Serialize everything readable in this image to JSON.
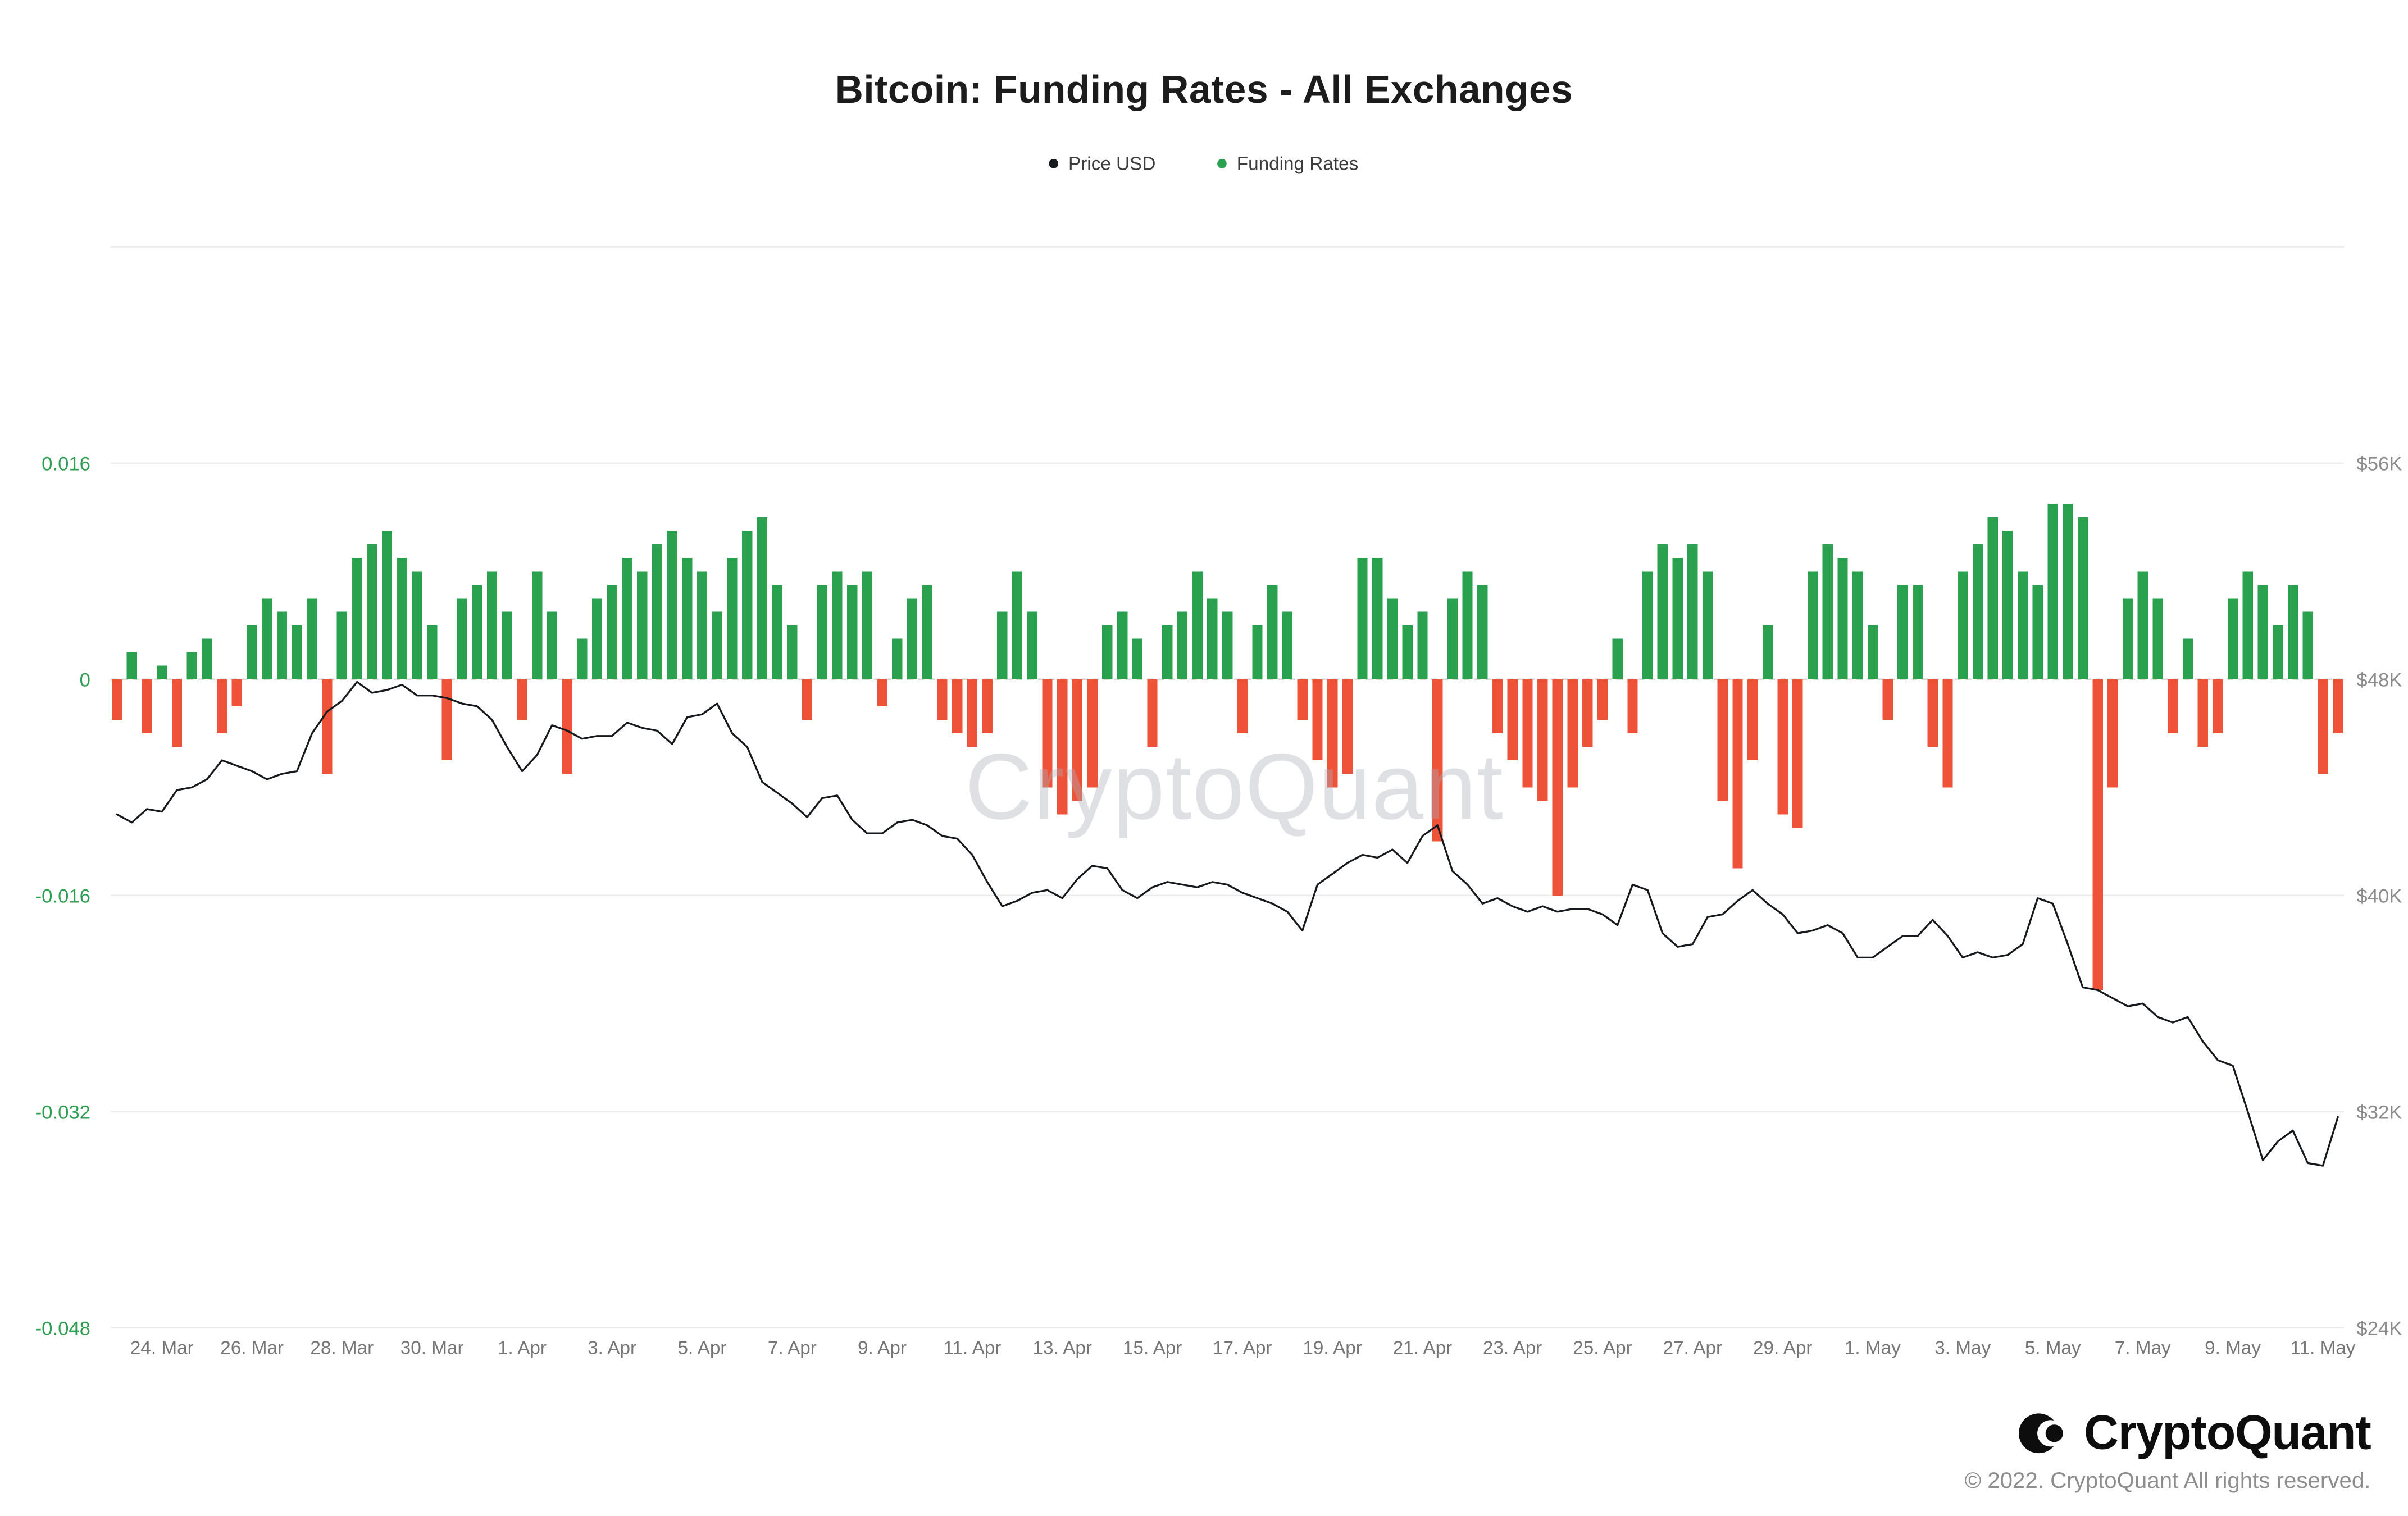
{
  "chart": {
    "title": "Bitcoin: Funding Rates - All Exchanges",
    "watermark": "CryptoQuant"
  },
  "legend": {
    "price": "Price USD",
    "funding": "Funding Rates"
  },
  "footer": {
    "brand": "CryptoQuant",
    "copyright": "© 2022. CryptoQuant All rights reserved."
  },
  "colors": {
    "price_line": "#16191d",
    "funding_positive": "#2aa14e",
    "funding_negative": "#ee5339",
    "axis_left_labels": "#2e9e50",
    "axis_right_labels": "#8b8b8b",
    "x_labels": "#767676",
    "gridline": "#ececec",
    "zero_line": "#d9d9d9"
  },
  "chart_data": {
    "type": "bar+line",
    "title": "Bitcoin: Funding Rates - All Exchanges",
    "legend_position": "top",
    "grid": "horizontal",
    "x_start_date": "23. Mar 2022",
    "points_per_day": 3,
    "x_tick_labels": [
      "24. Mar",
      "26. Mar",
      "28. Mar",
      "30. Mar",
      "1. Apr",
      "3. Apr",
      "5. Apr",
      "7. Apr",
      "9. Apr",
      "11. Apr",
      "13. Apr",
      "15. Apr",
      "17. Apr",
      "19. Apr",
      "21. Apr",
      "23. Apr",
      "25. Apr",
      "27. Apr",
      "29. Apr",
      "1. May",
      "3. May",
      "5. May",
      "7. May",
      "9. May",
      "11. May"
    ],
    "x_tick_first_point_index": 3,
    "x_tick_point_step": 6,
    "gridline_values_left": [
      0.032,
      0.016,
      0,
      -0.016,
      -0.032,
      -0.048
    ],
    "left_axis": {
      "range": [
        -0.048,
        0.032
      ],
      "ticks": [
        {
          "label": "0.016",
          "value": 0.016
        },
        {
          "label": "0",
          "value": 0
        },
        {
          "label": "-0.016",
          "value": -0.016
        },
        {
          "label": "-0.032",
          "value": -0.032
        },
        {
          "label": "-0.048",
          "value": -0.048
        }
      ]
    },
    "right_axis": {
      "range_k": [
        24,
        64
      ],
      "ticks": [
        {
          "label": "$56K",
          "value_k": 56
        },
        {
          "label": "$48K",
          "value_k": 48
        },
        {
          "label": "$40K",
          "value_k": 40
        },
        {
          "label": "$32K",
          "value_k": 32
        },
        {
          "label": "$24K",
          "value_k": 24
        }
      ]
    },
    "series": [
      {
        "name": "Funding Rates",
        "type": "bar",
        "axis": "left",
        "values": [
          -0.003,
          0.002,
          -0.004,
          0.001,
          -0.005,
          0.002,
          0.003,
          -0.004,
          -0.002,
          0.004,
          0.006,
          0.005,
          0.004,
          0.006,
          -0.007,
          0.005,
          0.009,
          0.01,
          0.011,
          0.009,
          0.008,
          0.004,
          -0.006,
          0.006,
          0.007,
          0.008,
          0.005,
          -0.003,
          0.008,
          0.005,
          -0.007,
          0.003,
          0.006,
          0.007,
          0.009,
          0.008,
          0.01,
          0.011,
          0.009,
          0.008,
          0.005,
          0.009,
          0.011,
          0.012,
          0.007,
          0.004,
          -0.003,
          0.007,
          0.008,
          0.007,
          0.008,
          -0.002,
          0.003,
          0.006,
          0.007,
          -0.003,
          -0.004,
          -0.005,
          -0.004,
          0.005,
          0.008,
          0.005,
          -0.008,
          -0.01,
          -0.009,
          -0.008,
          0.004,
          0.005,
          0.003,
          -0.005,
          0.004,
          0.005,
          0.008,
          0.006,
          0.005,
          -0.004,
          0.004,
          0.007,
          0.005,
          -0.003,
          -0.006,
          -0.008,
          -0.007,
          0.009,
          0.009,
          0.006,
          0.004,
          0.005,
          -0.012,
          0.006,
          0.008,
          0.007,
          -0.004,
          -0.006,
          -0.008,
          -0.009,
          -0.016,
          -0.008,
          -0.005,
          -0.003,
          0.003,
          -0.004,
          0.008,
          0.01,
          0.009,
          0.01,
          0.008,
          -0.009,
          -0.014,
          -0.006,
          0.004,
          -0.01,
          -0.011,
          0.008,
          0.01,
          0.009,
          0.008,
          0.004,
          -0.003,
          0.007,
          0.007,
          -0.005,
          -0.008,
          0.008,
          0.01,
          0.012,
          0.011,
          0.008,
          0.007,
          0.013,
          0.013,
          0.012,
          -0.023,
          -0.008,
          0.006,
          0.008,
          0.006,
          -0.004,
          0.003,
          -0.005,
          -0.004,
          0.006,
          0.008,
          0.007,
          0.004,
          0.007,
          0.005,
          -0.007,
          -0.004
        ]
      },
      {
        "name": "Price USD",
        "type": "line",
        "axis": "right",
        "unit": "USD thousands",
        "values": [
          43.0,
          42.7,
          43.2,
          43.1,
          43.9,
          44.0,
          44.3,
          45.0,
          44.8,
          44.6,
          44.3,
          44.5,
          44.6,
          46.0,
          46.8,
          47.2,
          47.9,
          47.5,
          47.6,
          47.8,
          47.4,
          47.4,
          47.3,
          47.1,
          47.0,
          46.5,
          45.5,
          44.6,
          45.2,
          46.3,
          46.1,
          45.8,
          45.9,
          45.9,
          46.4,
          46.2,
          46.1,
          45.6,
          46.6,
          46.7,
          47.1,
          46.0,
          45.5,
          44.2,
          43.8,
          43.4,
          42.9,
          43.6,
          43.7,
          42.8,
          42.3,
          42.3,
          42.7,
          42.8,
          42.6,
          42.2,
          42.1,
          41.5,
          40.5,
          39.6,
          39.8,
          40.1,
          40.2,
          39.9,
          40.6,
          41.1,
          41.0,
          40.2,
          39.9,
          40.3,
          40.5,
          40.4,
          40.3,
          40.5,
          40.4,
          40.1,
          39.9,
          39.7,
          39.4,
          38.7,
          40.4,
          40.8,
          41.2,
          41.5,
          41.4,
          41.7,
          41.2,
          42.2,
          42.6,
          40.9,
          40.4,
          39.7,
          39.9,
          39.6,
          39.4,
          39.6,
          39.4,
          39.5,
          39.5,
          39.3,
          38.9,
          40.4,
          40.2,
          38.6,
          38.1,
          38.2,
          39.2,
          39.3,
          39.8,
          40.2,
          39.7,
          39.3,
          38.6,
          38.7,
          38.9,
          38.6,
          37.7,
          37.7,
          38.1,
          38.5,
          38.5,
          39.1,
          38.5,
          37.7,
          37.9,
          37.7,
          37.8,
          38.2,
          39.9,
          39.7,
          38.2,
          36.6,
          36.5,
          36.2,
          35.9,
          36.0,
          35.5,
          35.3,
          35.5,
          34.6,
          33.9,
          33.7,
          32.0,
          30.2,
          30.9,
          31.3,
          30.1,
          30.0,
          31.8
        ]
      }
    ]
  }
}
